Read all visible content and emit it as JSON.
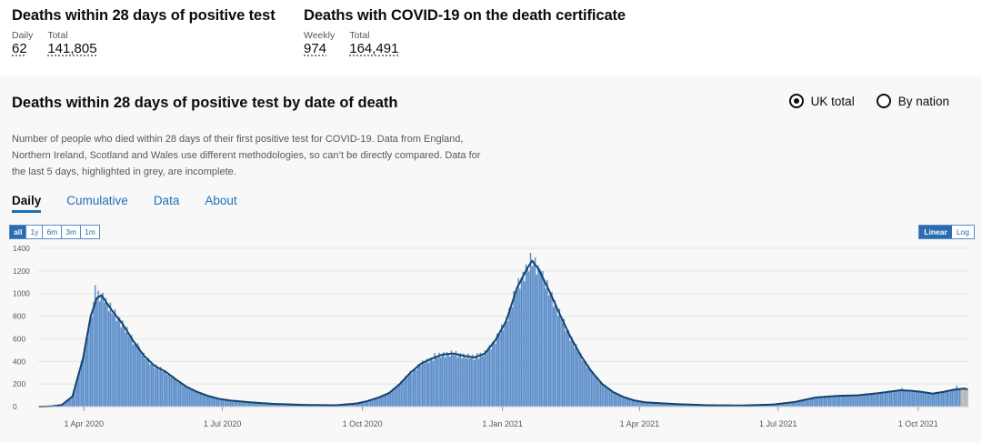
{
  "headlines": [
    {
      "title": "Deaths within 28 days of positive test",
      "metrics": [
        {
          "label": "Daily",
          "value": "62"
        },
        {
          "label": "Total",
          "value": "141,805"
        }
      ]
    },
    {
      "title": "Deaths with COVID-19 on the death certificate",
      "metrics": [
        {
          "label": "Weekly",
          "value": "974"
        },
        {
          "label": "Total",
          "value": "164,491"
        }
      ]
    }
  ],
  "card": {
    "title": "Deaths within 28 days of positive test by date of death",
    "radios": [
      {
        "label": "UK total",
        "checked": true
      },
      {
        "label": "By nation",
        "checked": false
      }
    ],
    "description": "Number of people who died within 28 days of their first positive test for COVID-19. Data from England, Northern Ireland, Scotland and Wales use different methodologies, so can’t be directly compared. Data for the last 5 days, highlighted in grey, are incomplete.",
    "tabs": [
      "Daily",
      "Cumulative",
      "Data",
      "About"
    ],
    "active_tab": "Daily"
  },
  "controls": {
    "ranges": [
      "all",
      "1y",
      "6m",
      "3m",
      "1m"
    ],
    "active_range": "all",
    "scales": [
      "Linear",
      "Log"
    ],
    "active_scale": "Linear"
  },
  "colors": {
    "bar": "#5b8dc9",
    "bar_incomplete": "#b1b4b6",
    "line": "#12436d",
    "grid": "#e3e3e3",
    "axis_text": "#505a5f"
  },
  "chart_data": {
    "type": "bar",
    "title": "Deaths within 28 days of positive test by date of death",
    "ylabel": "",
    "xlabel": "",
    "ylim": [
      0,
      1400
    ],
    "yticks": [
      0,
      200,
      400,
      600,
      800,
      1000,
      1200,
      1400
    ],
    "x_start": "2020-03-02",
    "x_end": "2021-11-02",
    "xticks": [
      {
        "date": "2020-04-01",
        "label": "1 Apr 2020"
      },
      {
        "date": "2020-07-01",
        "label": "1 Jul 2020"
      },
      {
        "date": "2020-10-01",
        "label": "1 Oct 2020"
      },
      {
        "date": "2021-01-01",
        "label": "1 Jan 2021"
      },
      {
        "date": "2021-04-01",
        "label": "1 Apr 2021"
      },
      {
        "date": "2021-07-01",
        "label": "1 Jul 2021"
      },
      {
        "date": "2021-10-01",
        "label": "1 Oct 2021"
      }
    ],
    "series": [
      {
        "name": "Daily deaths",
        "style": "bars",
        "interpolation": "daily values interpolated between key points (estimated from chart)"
      },
      {
        "name": "Rolling average",
        "style": "line"
      }
    ],
    "incomplete_days": 5,
    "key_points": [
      [
        "2020-03-02",
        0
      ],
      [
        "2020-03-10",
        2
      ],
      [
        "2020-03-17",
        15
      ],
      [
        "2020-03-24",
        90
      ],
      [
        "2020-03-31",
        430
      ],
      [
        "2020-04-05",
        800
      ],
      [
        "2020-04-09",
        960
      ],
      [
        "2020-04-12",
        985
      ],
      [
        "2020-04-19",
        850
      ],
      [
        "2020-04-26",
        730
      ],
      [
        "2020-05-03",
        580
      ],
      [
        "2020-05-10",
        450
      ],
      [
        "2020-05-17",
        360
      ],
      [
        "2020-05-24",
        310
      ],
      [
        "2020-05-31",
        240
      ],
      [
        "2020-06-07",
        175
      ],
      [
        "2020-06-14",
        130
      ],
      [
        "2020-06-21",
        95
      ],
      [
        "2020-06-28",
        70
      ],
      [
        "2020-07-05",
        55
      ],
      [
        "2020-07-19",
        38
      ],
      [
        "2020-08-02",
        25
      ],
      [
        "2020-08-23",
        15
      ],
      [
        "2020-09-13",
        12
      ],
      [
        "2020-09-27",
        28
      ],
      [
        "2020-10-04",
        50
      ],
      [
        "2020-10-11",
        80
      ],
      [
        "2020-10-18",
        120
      ],
      [
        "2020-10-25",
        200
      ],
      [
        "2020-11-01",
        300
      ],
      [
        "2020-11-08",
        380
      ],
      [
        "2020-11-15",
        425
      ],
      [
        "2020-11-22",
        460
      ],
      [
        "2020-11-29",
        470
      ],
      [
        "2020-12-06",
        450
      ],
      [
        "2020-12-13",
        435
      ],
      [
        "2020-12-20",
        470
      ],
      [
        "2020-12-27",
        590
      ],
      [
        "2021-01-03",
        760
      ],
      [
        "2021-01-10",
        1050
      ],
      [
        "2021-01-17",
        1230
      ],
      [
        "2021-01-20",
        1290
      ],
      [
        "2021-01-24",
        1220
      ],
      [
        "2021-01-31",
        1030
      ],
      [
        "2021-02-07",
        820
      ],
      [
        "2021-02-14",
        620
      ],
      [
        "2021-02-21",
        450
      ],
      [
        "2021-02-28",
        310
      ],
      [
        "2021-03-07",
        200
      ],
      [
        "2021-03-14",
        130
      ],
      [
        "2021-03-21",
        85
      ],
      [
        "2021-03-28",
        55
      ],
      [
        "2021-04-04",
        38
      ],
      [
        "2021-04-25",
        22
      ],
      [
        "2021-05-16",
        12
      ],
      [
        "2021-06-06",
        10
      ],
      [
        "2021-06-27",
        18
      ],
      [
        "2021-07-11",
        40
      ],
      [
        "2021-07-25",
        80
      ],
      [
        "2021-08-08",
        95
      ],
      [
        "2021-08-22",
        100
      ],
      [
        "2021-09-05",
        120
      ],
      [
        "2021-09-19",
        145
      ],
      [
        "2021-09-26",
        140
      ],
      [
        "2021-10-03",
        130
      ],
      [
        "2021-10-10",
        115
      ],
      [
        "2021-10-17",
        130
      ],
      [
        "2021-10-24",
        150
      ],
      [
        "2021-10-31",
        160
      ],
      [
        "2021-11-02",
        150
      ]
    ],
    "spikes": [
      [
        "2020-04-08",
        1075
      ],
      [
        "2020-04-14",
        920
      ],
      [
        "2020-05-06",
        560
      ],
      [
        "2020-06-01",
        230
      ],
      [
        "2020-11-17",
        475
      ],
      [
        "2020-12-15",
        475
      ],
      [
        "2020-12-22",
        520
      ],
      [
        "2021-01-19",
        1360
      ],
      [
        "2021-01-26",
        1200
      ],
      [
        "2021-09-20",
        165
      ],
      [
        "2021-10-26",
        185
      ]
    ]
  }
}
